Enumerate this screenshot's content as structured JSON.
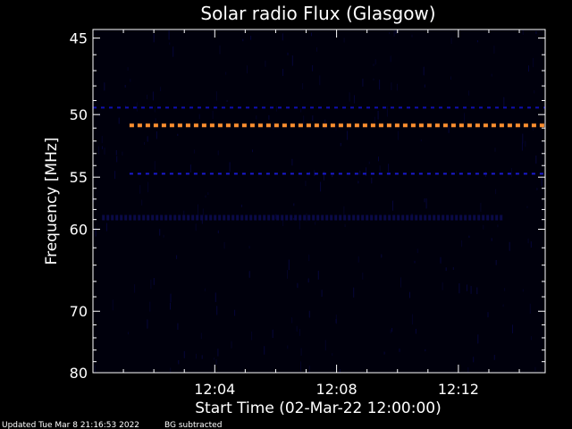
{
  "chart_data": {
    "type": "heatmap",
    "title": "Solar radio Flux (Glasgow)",
    "xlabel": "Start Time (02-Mar-22 12:00:00)",
    "ylabel": "Frequency [MHz]",
    "x_ticks": [
      {
        "minutes": 4,
        "label": "12:04"
      },
      {
        "minutes": 8,
        "label": "12:08"
      },
      {
        "minutes": 12,
        "label": "12:12"
      }
    ],
    "y_ticks": [
      {
        "value": 45,
        "label": "45"
      },
      {
        "value": 50,
        "label": "50"
      },
      {
        "value": 55,
        "label": "55"
      },
      {
        "value": 60,
        "label": "60"
      },
      {
        "value": 70,
        "label": "70"
      },
      {
        "value": 80,
        "label": "80"
      }
    ],
    "y_minor_ticks": [
      46,
      47,
      48,
      49,
      51,
      52,
      53,
      54,
      56,
      57,
      58,
      59,
      62,
      64,
      66,
      68,
      72,
      74,
      76,
      78
    ],
    "xlim_minutes": [
      0,
      14.85
    ],
    "ylim_mhz": [
      44.5,
      80
    ],
    "y_scale": "reciprocal",
    "bands": [
      {
        "freq_mhz": 49.5,
        "start_min": 0.0,
        "end_min": 14.85,
        "color": "#1010b0",
        "level": "low"
      },
      {
        "freq_mhz": 50.8,
        "start_min": 1.2,
        "end_min": 14.85,
        "color": "#ff9030",
        "level": "high"
      },
      {
        "freq_mhz": 54.7,
        "start_min": 1.2,
        "end_min": 14.85,
        "color": "#1a1ad0",
        "level": "low"
      },
      {
        "freq_mhz": 58.8,
        "start_min": 0.3,
        "end_min": 13.5,
        "color": "#0a0a48",
        "level": "faint"
      }
    ],
    "grid": false,
    "legend": "none"
  },
  "footer": {
    "updated": "Updated Tue Mar  8 21:16:53 2022",
    "note": "BG subtracted"
  },
  "colors": {
    "background": "#000000",
    "plot_background": "#00000c",
    "axis": "#ffffff"
  }
}
